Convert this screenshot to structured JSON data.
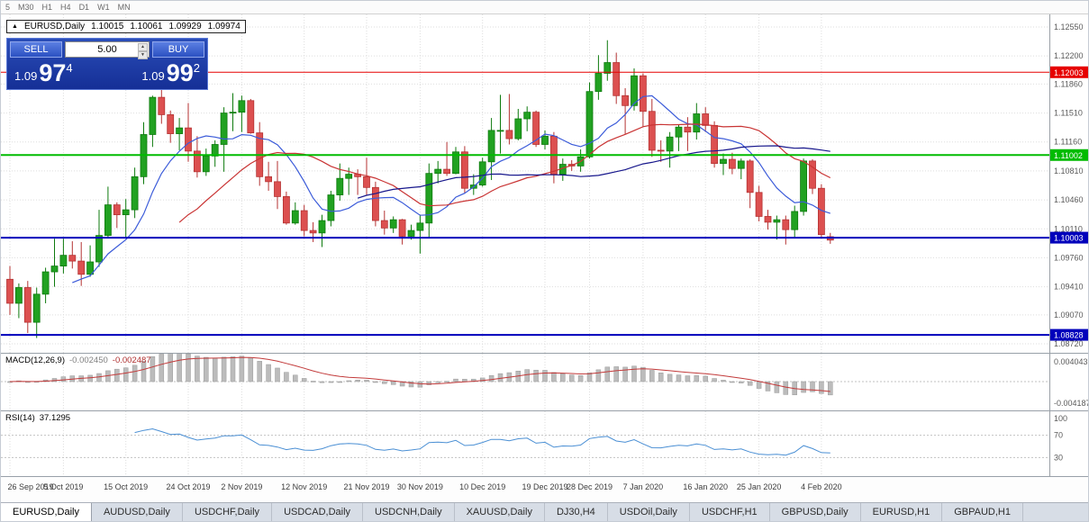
{
  "toolbar": {
    "timeframes": [
      "5",
      "M30",
      "H1",
      "H4",
      "D1",
      "W1",
      "MN"
    ]
  },
  "chart_header": {
    "arrow": "▲",
    "symbol": "EURUSD,Daily",
    "open": "1.10015",
    "high": "1.10061",
    "low": "1.09929",
    "close": "1.09974"
  },
  "trade_panel": {
    "sell_label": "SELL",
    "buy_label": "BUY",
    "volume": "5.00",
    "sell": {
      "base": "1.09",
      "big": "97",
      "pip": "4"
    },
    "buy": {
      "base": "1.09",
      "big": "99",
      "pip": "2"
    }
  },
  "active_tab_index": 0,
  "tabs": [
    "EURUSD,Daily",
    "AUDUSD,Daily",
    "USDCHF,Daily",
    "USDCAD,Daily",
    "USDCNH,Daily",
    "XAUUSD,Daily",
    "DJ30,H4",
    "USDOil,Daily",
    "USDCHF,H1",
    "GBPUSD,Daily",
    "EURUSD,H1",
    "GBPAUD,H1"
  ],
  "chart_data": {
    "type": "candlestick",
    "title": "EURUSD,Daily",
    "up_color": "#21a121",
    "up_border": "#0d7a0d",
    "down_color": "#dc5050",
    "down_border": "#b43232",
    "y_ticks": [
      "1.12550",
      "1.12200",
      "1.11860",
      "1.11510",
      "1.11160",
      "1.10810",
      "1.10460",
      "1.10110",
      "1.09760",
      "1.09410",
      "1.09070",
      "1.08720"
    ],
    "x_labels": [
      "26 Sep 2019",
      "5 Oct 2019",
      "15 Oct 2019",
      "24 Oct 2019",
      "2 Nov 2019",
      "12 Nov 2019",
      "21 Nov 2019",
      "30 Nov 2019",
      "10 Dec 2019",
      "19 Dec 2019",
      "28 Dec 2019",
      "7 Jan 2020",
      "16 Jan 2020",
      "25 Jan 2020",
      "4 Feb 2020"
    ],
    "x_positions": [
      0,
      6,
      13,
      20,
      26,
      33,
      40,
      46,
      53,
      60,
      65,
      71,
      78,
      84,
      91
    ],
    "candles": [
      [
        1.095,
        1.0966,
        1.0907,
        1.0921
      ],
      [
        1.0921,
        1.0945,
        1.0903,
        1.094
      ],
      [
        1.094,
        1.0948,
        1.0885,
        1.0898
      ],
      [
        1.0898,
        1.094,
        1.0879,
        1.0932
      ],
      [
        1.0932,
        1.0964,
        1.0921,
        1.0959
      ],
      [
        1.0959,
        1.0999,
        1.0941,
        1.0966
      ],
      [
        1.0966,
        1.0999,
        1.0957,
        1.0979
      ],
      [
        1.0979,
        1.0996,
        1.0963,
        1.0972
      ],
      [
        1.0972,
        1.0995,
        1.0942,
        1.0956
      ],
      [
        1.0956,
        1.0991,
        1.0953,
        1.0971
      ],
      [
        1.0971,
        1.1034,
        1.0965,
        1.1003
      ],
      [
        1.1003,
        1.1062,
        1.1,
        1.104
      ],
      [
        1.104,
        1.1043,
        1.1012,
        1.1028
      ],
      [
        1.1028,
        1.1047,
        1.1001,
        1.1034
      ],
      [
        1.1034,
        1.1085,
        1.1024,
        1.1074
      ],
      [
        1.1074,
        1.114,
        1.1065,
        1.1125
      ],
      [
        1.1125,
        1.1172,
        1.111,
        1.117
      ],
      [
        1.117,
        1.1179,
        1.1138,
        1.1149
      ],
      [
        1.1149,
        1.1154,
        1.1115,
        1.1126
      ],
      [
        1.1126,
        1.1145,
        1.1106,
        1.1133
      ],
      [
        1.1133,
        1.1163,
        1.1092,
        1.1105
      ],
      [
        1.1105,
        1.1123,
        1.1073,
        1.108
      ],
      [
        1.108,
        1.1108,
        1.1075,
        1.1099
      ],
      [
        1.1099,
        1.1118,
        1.1086,
        1.1113
      ],
      [
        1.1113,
        1.1158,
        1.108,
        1.1151
      ],
      [
        1.1151,
        1.1175,
        1.1129,
        1.1152
      ],
      [
        1.1152,
        1.1172,
        1.1128,
        1.1166
      ],
      [
        1.1166,
        1.1168,
        1.1126,
        1.1127
      ],
      [
        1.1127,
        1.114,
        1.1063,
        1.1074
      ],
      [
        1.1074,
        1.1092,
        1.1057,
        1.1068
      ],
      [
        1.1068,
        1.1093,
        1.1035,
        1.105
      ],
      [
        1.105,
        1.1056,
        1.1016,
        1.1018
      ],
      [
        1.1018,
        1.1043,
        1.1016,
        1.1033
      ],
      [
        1.1033,
        1.104,
        1.1002,
        1.1009
      ],
      [
        1.1009,
        1.1019,
        1.0995,
        1.1006
      ],
      [
        1.1006,
        1.1028,
        1.0989,
        1.1021
      ],
      [
        1.1021,
        1.1057,
        1.1014,
        1.1052
      ],
      [
        1.1052,
        1.109,
        1.1045,
        1.1072
      ],
      [
        1.1072,
        1.1085,
        1.1052,
        1.1077
      ],
      [
        1.1077,
        1.1083,
        1.1052,
        1.1074
      ],
      [
        1.1074,
        1.1097,
        1.1052,
        1.1061
      ],
      [
        1.1061,
        1.1068,
        1.1014,
        1.1021
      ],
      [
        1.1021,
        1.1033,
        1.1004,
        1.1012
      ],
      [
        1.1012,
        1.1026,
        1.1006,
        1.1022
      ],
      [
        1.1022,
        1.1023,
        1.0992,
        1.1002
      ],
      [
        1.1002,
        1.1016,
        1.0998,
        1.1009
      ],
      [
        1.1009,
        1.1028,
        1.0981,
        1.1018
      ],
      [
        1.1018,
        1.109,
        1.1,
        1.1078
      ],
      [
        1.1078,
        1.1093,
        1.1066,
        1.1083
      ],
      [
        1.1083,
        1.1116,
        1.1075,
        1.1078
      ],
      [
        1.1078,
        1.111,
        1.1077,
        1.1104
      ],
      [
        1.1104,
        1.1111,
        1.1054,
        1.106
      ],
      [
        1.106,
        1.1077,
        1.1052,
        1.1064
      ],
      [
        1.1064,
        1.1097,
        1.1062,
        1.1092
      ],
      [
        1.1092,
        1.1145,
        1.107,
        1.113
      ],
      [
        1.113,
        1.1173,
        1.1102,
        1.113
      ],
      [
        1.113,
        1.1174,
        1.1113,
        1.112
      ],
      [
        1.112,
        1.1156,
        1.1118,
        1.1144
      ],
      [
        1.1144,
        1.1159,
        1.1129,
        1.1152
      ],
      [
        1.1152,
        1.1154,
        1.111,
        1.1113
      ],
      [
        1.1113,
        1.113,
        1.1107,
        1.1123
      ],
      [
        1.1123,
        1.1128,
        1.1066,
        1.1077
      ],
      [
        1.1077,
        1.1096,
        1.1069,
        1.1089
      ],
      [
        1.1089,
        1.1094,
        1.1081,
        1.1087
      ],
      [
        1.1087,
        1.1107,
        1.108,
        1.1098
      ],
      [
        1.1098,
        1.1188,
        1.1096,
        1.1177
      ],
      [
        1.1177,
        1.1221,
        1.1167,
        1.1199
      ],
      [
        1.1199,
        1.1239,
        1.119,
        1.1212
      ],
      [
        1.1212,
        1.1224,
        1.1162,
        1.1172
      ],
      [
        1.1172,
        1.1181,
        1.1125,
        1.116
      ],
      [
        1.116,
        1.1205,
        1.1154,
        1.1196
      ],
      [
        1.1196,
        1.1199,
        1.1134,
        1.1153
      ],
      [
        1.1153,
        1.1168,
        1.1098,
        1.1106
      ],
      [
        1.1106,
        1.1118,
        1.1092,
        1.1105
      ],
      [
        1.1105,
        1.1128,
        1.1085,
        1.1122
      ],
      [
        1.1122,
        1.1137,
        1.1105,
        1.1134
      ],
      [
        1.1134,
        1.1146,
        1.1105,
        1.1128
      ],
      [
        1.1128,
        1.1163,
        1.1119,
        1.115
      ],
      [
        1.115,
        1.1158,
        1.1128,
        1.1136
      ],
      [
        1.1136,
        1.1141,
        1.1085,
        1.109
      ],
      [
        1.109,
        1.1102,
        1.1076,
        1.1095
      ],
      [
        1.1095,
        1.1103,
        1.1077,
        1.1084
      ],
      [
        1.1084,
        1.1096,
        1.1071,
        1.1093
      ],
      [
        1.1093,
        1.1095,
        1.1036,
        1.1055
      ],
      [
        1.1055,
        1.1063,
        1.102,
        1.1026
      ],
      [
        1.1026,
        1.1034,
        1.101,
        1.1019
      ],
      [
        1.1019,
        1.1027,
        1.0998,
        1.1022
      ],
      [
        1.1022,
        1.1027,
        1.0992,
        1.101
      ],
      [
        1.101,
        1.1039,
        1.1001,
        1.1032
      ],
      [
        1.1032,
        1.1096,
        1.1027,
        1.1093
      ],
      [
        1.1093,
        1.1095,
        1.1053,
        1.106
      ],
      [
        1.106,
        1.1065,
        1.1001,
        1.1004
      ],
      [
        1.10015,
        1.10061,
        1.09929,
        1.09974
      ]
    ],
    "moving_averages": [
      {
        "period": 8,
        "color": "#3b5bd9"
      },
      {
        "period": 20,
        "color": "#c93434"
      },
      {
        "period": 40,
        "color": "#17178c"
      }
    ],
    "hlines": [
      {
        "price": 1.12003,
        "label": "1.12003",
        "color": "#e60000",
        "width": 1
      },
      {
        "price": 1.11002,
        "label": "1.11002",
        "color": "#00bb00",
        "width": 2
      },
      {
        "price": 1.10003,
        "label": "1.10003",
        "color": "#0000bb",
        "width": 2
      },
      {
        "price": 1.08828,
        "label": "1.08828",
        "color": "#0000bb",
        "width": 2
      }
    ],
    "macd": {
      "name": "MACD(12,26,9)",
      "params": [
        12,
        26,
        9
      ],
      "main_value": "-0.002450",
      "signal_value": "-0.002487",
      "axis_labels": [
        "0.004043",
        "-0.004187"
      ],
      "histogram_color": "#bcbcbc",
      "signal_color": "#c23a3a"
    },
    "rsi": {
      "name": "RSI(14)",
      "period": 14,
      "value": "37.1295",
      "axis_labels": [
        "100",
        "70",
        "30"
      ],
      "levels": [
        70,
        30
      ],
      "line_color": "#4a8fd4"
    }
  }
}
